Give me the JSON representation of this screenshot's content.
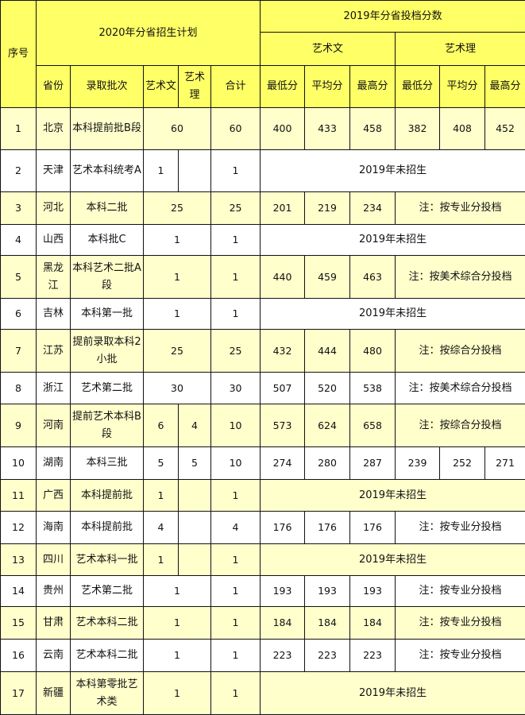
{
  "colors": {
    "header": "#ffff66",
    "odd_row": "#ffffcc",
    "even_row": "#ffffff"
  },
  "header": {
    "index": "序号",
    "plan_title": "2020年分省招生计划",
    "scores_title": "2019年分省投档分数",
    "arts_wen": "艺术文",
    "arts_li": "艺术理",
    "province": "省份",
    "batch": "录取批次",
    "plan_wen": "艺术文",
    "plan_li": "艺术理",
    "total": "合计",
    "min": "最低分",
    "avg": "平均分",
    "max": "最高分"
  },
  "rows": [
    {
      "no": "1",
      "prov": "北京",
      "batch": "本科提前批B段",
      "wen": "60",
      "li": null,
      "merged": true,
      "total": "60",
      "scores": [
        "400",
        "433",
        "458",
        "382",
        "408",
        "452"
      ]
    },
    {
      "no": "2",
      "prov": "天津",
      "batch": "艺术本科统考A",
      "wen": "1",
      "li": "",
      "merged": false,
      "total": "1",
      "note_all": "2019年未招生"
    },
    {
      "no": "3",
      "prov": "河北",
      "batch": "本科二批",
      "wen": "25",
      "merged": true,
      "total": "25",
      "wen_scores": [
        "201",
        "219",
        "234"
      ],
      "note": "注：按专业分投档"
    },
    {
      "no": "4",
      "prov": "山西",
      "batch": "本科批C",
      "wen": "1",
      "merged": true,
      "total": "1",
      "note_all": "2019年未招生"
    },
    {
      "no": "5",
      "prov": "黑龙江",
      "batch": "本科艺术二批A段",
      "wen": "1",
      "merged": true,
      "total": "1",
      "wen_scores": [
        "440",
        "459",
        "463"
      ],
      "note": "注：按美术综合分投档"
    },
    {
      "no": "6",
      "prov": "吉林",
      "batch": "本科第一批",
      "wen": "1",
      "merged": true,
      "total": "1",
      "note_all": "2019年未招生"
    },
    {
      "no": "7",
      "prov": "江苏",
      "batch": "提前录取本科2小批",
      "wen": "25",
      "merged": true,
      "total": "25",
      "wen_scores": [
        "432",
        "444",
        "480"
      ],
      "note": "注：按综合分投档"
    },
    {
      "no": "8",
      "prov": "浙江",
      "batch": "艺术第二批",
      "wen": "30",
      "merged": true,
      "total": "30",
      "wen_scores": [
        "507",
        "520",
        "538"
      ],
      "note": "注：按美术综合分投档"
    },
    {
      "no": "9",
      "prov": "河南",
      "batch": "提前艺术本科B段",
      "wen": "6",
      "li": "4",
      "merged": false,
      "total": "10",
      "wen_scores": [
        "573",
        "624",
        "658"
      ],
      "note": "注：按综合分投档"
    },
    {
      "no": "10",
      "prov": "湖南",
      "batch": "本科三批",
      "wen": "5",
      "li": "5",
      "merged": false,
      "total": "10",
      "scores": [
        "274",
        "280",
        "287",
        "239",
        "252",
        "271"
      ]
    },
    {
      "no": "11",
      "prov": "广西",
      "batch": "本科提前批",
      "wen": "1",
      "li": "",
      "merged": false,
      "total": "1",
      "note_all": "2019年未招生"
    },
    {
      "no": "12",
      "prov": "海南",
      "batch": "本科提前批",
      "wen": "4",
      "li": "",
      "merged": false,
      "total": "4",
      "wen_scores": [
        "176",
        "176",
        "176"
      ],
      "note": "注：按专业分投档"
    },
    {
      "no": "13",
      "prov": "四川",
      "batch": "艺术本科一批",
      "wen": "1",
      "li": "",
      "merged": false,
      "total": "1",
      "note_all": "2019年未招生"
    },
    {
      "no": "14",
      "prov": "贵州",
      "batch": "艺术第二批",
      "wen": "1",
      "merged": true,
      "total": "1",
      "wen_scores": [
        "193",
        "193",
        "193"
      ],
      "note": "注：按专业分投档"
    },
    {
      "no": "15",
      "prov": "甘肃",
      "batch": "艺术本科二批",
      "wen": "1",
      "merged": true,
      "total": "1",
      "wen_scores": [
        "184",
        "184",
        "184"
      ],
      "note": "注：按专业分投档"
    },
    {
      "no": "16",
      "prov": "云南",
      "batch": "艺术本科二批",
      "wen": "1",
      "merged": true,
      "total": "1",
      "wen_scores": [
        "223",
        "223",
        "223"
      ],
      "note": "注：按专业分投档"
    },
    {
      "no": "17",
      "prov": "新疆",
      "batch": "本科第零批艺术类",
      "wen": "1",
      "merged": true,
      "total": "1",
      "note_all": "2019年未招生"
    }
  ]
}
